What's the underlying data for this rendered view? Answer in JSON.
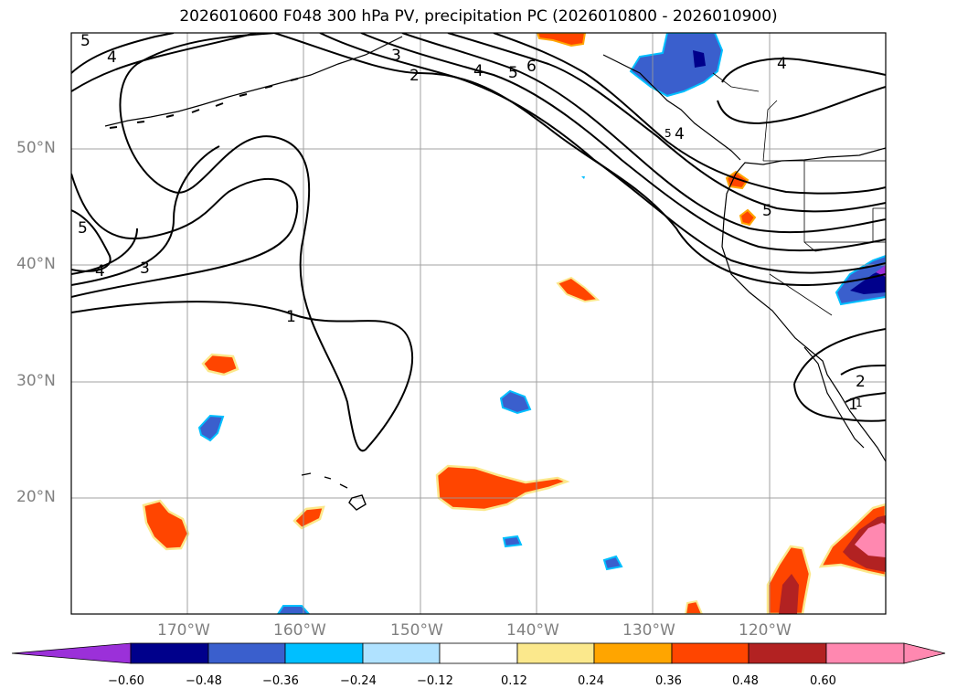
{
  "title": "2026010600 F048 300 hPa PV, precipitation PC (2026010800 - 2026010900)",
  "lat_labels": [
    "50°N",
    "40°N",
    "30°N",
    "20°N"
  ],
  "lon_labels": [
    "170°W",
    "160°W",
    "150°W",
    "140°W",
    "130°W",
    "120°W"
  ],
  "colorbar": {
    "ticks": [
      "−0.60",
      "−0.48",
      "−0.36",
      "−0.24",
      "−0.12",
      "0.12",
      "0.24",
      "0.36",
      "0.48",
      "0.60"
    ],
    "colors": [
      "#9b30d9",
      "#00008b",
      "#3a5fcd",
      "#00bfff",
      "#b0e2ff",
      "#ffffff",
      "#fbe88c",
      "#ffa500",
      "#ff4500",
      "#b22222",
      "#ff88b0"
    ]
  },
  "contour_labels": [
    "5",
    "4",
    "3",
    "2",
    "4",
    "5",
    "6",
    "4",
    "4",
    "1",
    "5",
    "5",
    "4",
    "3",
    "1",
    "5",
    "2",
    "1"
  ]
}
